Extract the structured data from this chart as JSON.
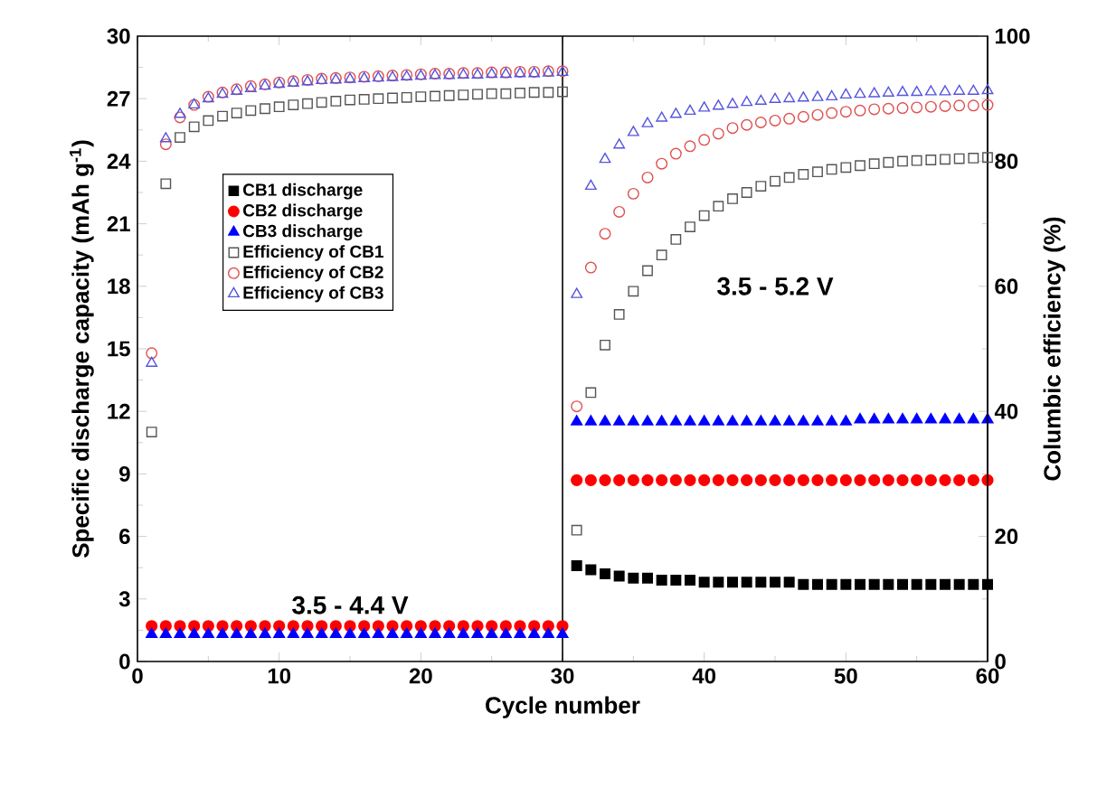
{
  "chart_data": {
    "type": "scatter",
    "xlabel": "Cycle number",
    "ylabel": "Specific discharge capacity (mAh g$^{-1}$)",
    "y2label": "Columbic efficiency (%)",
    "xlim": [
      0,
      60
    ],
    "xticks": [
      0,
      10,
      20,
      30,
      40,
      50,
      60
    ],
    "ylim": [
      0,
      30
    ],
    "yticks": [
      0,
      3,
      6,
      9,
      12,
      15,
      18,
      21,
      24,
      27,
      30
    ],
    "y2lim": [
      0,
      100
    ],
    "y2ticks": [
      0,
      20,
      40,
      60,
      80,
      100
    ],
    "legend": "left",
    "grid": false,
    "ref_lines": [
      {
        "axis": "x",
        "value": 30,
        "color": "#000000"
      }
    ],
    "annotations": [
      "3.5 - 4.4 V",
      "3.5 - 5.2 V"
    ],
    "x": [
      1,
      2,
      3,
      4,
      5,
      6,
      7,
      8,
      9,
      10,
      11,
      12,
      13,
      14,
      15,
      16,
      17,
      18,
      19,
      20,
      21,
      22,
      23,
      24,
      25,
      26,
      27,
      28,
      29,
      30,
      31,
      32,
      33,
      34,
      35,
      36,
      37,
      38,
      39,
      40,
      41,
      42,
      43,
      44,
      45,
      46,
      47,
      48,
      49,
      50,
      51,
      52,
      53,
      54,
      55,
      56,
      57,
      58,
      59,
      60
    ],
    "series": [
      {
        "name": "CB1 discharge",
        "color": "#000000",
        "marker": "square",
        "values": [
          null,
          null,
          null,
          null,
          null,
          null,
          null,
          null,
          null,
          null,
          null,
          null,
          null,
          null,
          null,
          null,
          null,
          null,
          null,
          null,
          null,
          null,
          null,
          null,
          null,
          null,
          null,
          null,
          null,
          null,
          4.6,
          4.4,
          4.2,
          4.1,
          4.0,
          4.0,
          3.9,
          3.9,
          3.9,
          3.8,
          3.8,
          3.8,
          3.8,
          3.8,
          3.8,
          3.8,
          3.7,
          3.7,
          3.7,
          3.7,
          3.7,
          3.7,
          3.7,
          3.7,
          3.7,
          3.7,
          3.7,
          3.7,
          3.7,
          3.7
        ]
      },
      {
        "name": "CB2 discharge",
        "color": "#ff0000",
        "marker": "circle",
        "values": [
          1.7,
          1.7,
          1.7,
          1.7,
          1.7,
          1.7,
          1.7,
          1.7,
          1.7,
          1.7,
          1.7,
          1.7,
          1.7,
          1.7,
          1.7,
          1.7,
          1.7,
          1.7,
          1.7,
          1.7,
          1.7,
          1.7,
          1.7,
          1.7,
          1.7,
          1.7,
          1.7,
          1.7,
          1.7,
          1.7,
          8.7,
          8.7,
          8.7,
          8.7,
          8.7,
          8.7,
          8.7,
          8.7,
          8.7,
          8.7,
          8.7,
          8.7,
          8.7,
          8.7,
          8.7,
          8.7,
          8.7,
          8.7,
          8.7,
          8.7,
          8.7,
          8.7,
          8.7,
          8.7,
          8.7,
          8.7,
          8.7,
          8.7,
          8.7,
          8.7
        ]
      },
      {
        "name": "CB3 discharge",
        "color": "#0000ff",
        "marker": "triangle",
        "values": [
          1.3,
          1.3,
          1.3,
          1.3,
          1.3,
          1.3,
          1.3,
          1.3,
          1.3,
          1.3,
          1.3,
          1.3,
          1.3,
          1.3,
          1.3,
          1.3,
          1.3,
          1.3,
          1.3,
          1.3,
          1.3,
          1.3,
          1.3,
          1.3,
          1.3,
          1.3,
          1.3,
          1.3,
          1.3,
          1.3,
          11.5,
          11.5,
          11.5,
          11.5,
          11.5,
          11.5,
          11.5,
          11.5,
          11.5,
          11.5,
          11.5,
          11.5,
          11.5,
          11.5,
          11.5,
          11.5,
          11.5,
          11.5,
          11.5,
          11.5,
          11.6,
          11.6,
          11.6,
          11.6,
          11.6,
          11.6,
          11.6,
          11.6,
          11.6,
          11.6
        ]
      },
      {
        "name": "Efficiency of CB1",
        "color": "#555555",
        "marker": "square",
        "axis": "y2",
        "values": [
          36.7,
          76.4,
          83.8,
          85.5,
          86.5,
          87.2,
          87.7,
          88.1,
          88.4,
          88.7,
          89.0,
          89.2,
          89.4,
          89.6,
          89.8,
          89.9,
          90.0,
          90.1,
          90.2,
          90.3,
          90.4,
          90.5,
          90.6,
          90.7,
          90.8,
          90.8,
          90.9,
          91.0,
          91.0,
          91.1,
          21.0,
          43.0,
          50.6,
          55.5,
          59.2,
          62.5,
          65.0,
          67.5,
          69.5,
          71.3,
          72.8,
          74.0,
          75.0,
          76.0,
          76.8,
          77.4,
          77.9,
          78.3,
          78.7,
          79.0,
          79.3,
          79.6,
          79.8,
          80.0,
          80.1,
          80.2,
          80.3,
          80.4,
          80.5,
          80.6
        ]
      },
      {
        "name": "Efficiency of CB2",
        "color": "#e05050",
        "marker": "circle",
        "axis": "y2",
        "values": [
          49.3,
          82.7,
          87.0,
          89.0,
          90.3,
          91.0,
          91.5,
          92.0,
          92.3,
          92.6,
          92.8,
          93.0,
          93.2,
          93.3,
          93.4,
          93.5,
          93.6,
          93.7,
          93.8,
          93.9,
          94.0,
          94.0,
          94.1,
          94.1,
          94.2,
          94.2,
          94.3,
          94.3,
          94.4,
          94.4,
          40.8,
          63.0,
          68.4,
          71.9,
          74.8,
          77.4,
          79.6,
          81.2,
          82.4,
          83.4,
          84.4,
          85.3,
          85.8,
          86.2,
          86.5,
          86.8,
          87.1,
          87.4,
          87.7,
          87.9,
          88.1,
          88.3,
          88.4,
          88.5,
          88.6,
          88.7,
          88.8,
          88.9,
          88.9,
          89.0
        ]
      },
      {
        "name": "Efficiency of CB3",
        "color": "#5555dd",
        "marker": "triangle",
        "axis": "y2",
        "values": [
          47.7,
          83.6,
          87.5,
          89.0,
          90.0,
          90.7,
          91.2,
          91.6,
          92.0,
          92.3,
          92.5,
          92.7,
          92.9,
          93.0,
          93.1,
          93.2,
          93.3,
          93.4,
          93.5,
          93.6,
          93.7,
          93.7,
          93.8,
          93.8,
          93.9,
          93.9,
          94.0,
          94.0,
          94.1,
          94.2,
          58.7,
          76.0,
          80.3,
          82.6,
          84.6,
          86.0,
          86.9,
          87.5,
          88.0,
          88.5,
          88.8,
          89.1,
          89.4,
          89.6,
          89.9,
          90.0,
          90.1,
          90.2,
          90.3,
          90.6,
          90.7,
          90.8,
          90.9,
          91.0,
          91.0,
          91.1,
          91.1,
          91.2,
          91.2,
          91.3
        ]
      }
    ]
  }
}
